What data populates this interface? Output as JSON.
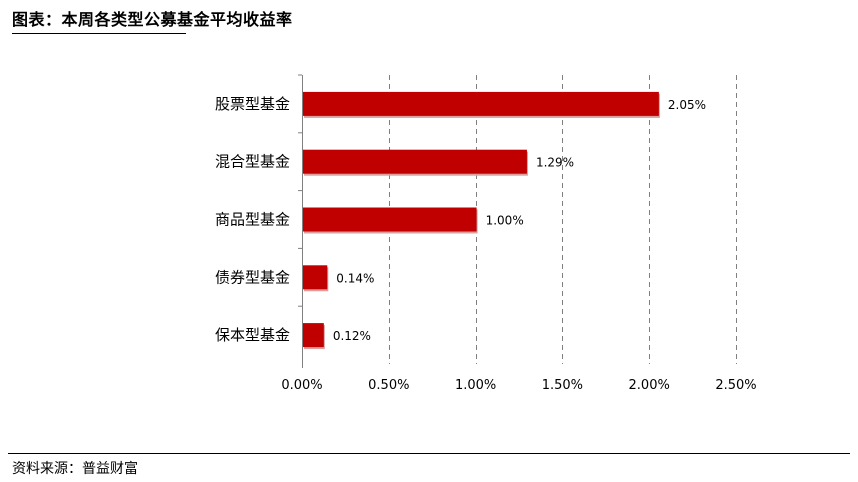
{
  "title": "图表：本周各类型公募基金平均收益率",
  "source": "资料来源：普益财富",
  "colors": {
    "bar": "#c00000",
    "grid": "#7f7f7f",
    "axis": "#808080"
  },
  "chart_data": {
    "type": "bar",
    "orientation": "horizontal",
    "categories": [
      "股票型基金",
      "混合型基金",
      "商品型基金",
      "债券型基金",
      "保本型基金"
    ],
    "values": [
      2.05,
      1.29,
      1.0,
      0.14,
      0.12
    ],
    "data_labels": [
      "2.05%",
      "1.29%",
      "1.00%",
      "0.14%",
      "0.12%"
    ],
    "x_ticks": [
      0,
      0.5,
      1.0,
      1.5,
      2.0,
      2.5
    ],
    "x_tick_labels": [
      "0.00%",
      "0.50%",
      "1.00%",
      "1.50%",
      "2.00%",
      "2.50%"
    ],
    "xlim": [
      0,
      2.5
    ],
    "grid": "vertical-dashed",
    "legend": "none"
  }
}
